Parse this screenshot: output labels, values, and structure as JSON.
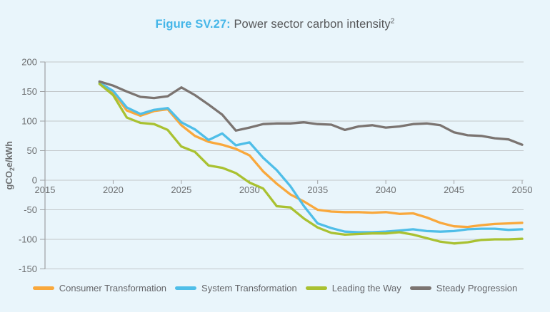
{
  "title": {
    "prefix": "Figure SV.27:",
    "text": " Power sector carbon intensity",
    "superscript": "2"
  },
  "colors": {
    "background": "#E9F5FB",
    "title_accent": "#45B6E8",
    "title_text": "#57585A",
    "axis_text": "#6E7072",
    "legend_text": "#65666A",
    "gridline": "#C2C7CA",
    "axis_line": "#9FA1A4"
  },
  "chart_data": {
    "type": "line",
    "title": "Power sector carbon intensity",
    "xlabel": "",
    "ylabel": "gCO2e/kWh",
    "ylabel_parts": [
      "gCO",
      "2",
      "e/kWh"
    ],
    "xlim": [
      2015,
      2050
    ],
    "ylim": [
      -150,
      200
    ],
    "x_ticks": [
      2015,
      2020,
      2025,
      2030,
      2035,
      2040,
      2045,
      2050
    ],
    "y_ticks": [
      200,
      150,
      100,
      50,
      0,
      -50,
      -100,
      -150
    ],
    "grid": "horizontal",
    "legend_position": "bottom",
    "x": [
      2019,
      2020,
      2021,
      2022,
      2023,
      2024,
      2025,
      2026,
      2027,
      2028,
      2029,
      2030,
      2031,
      2032,
      2033,
      2034,
      2035,
      2036,
      2037,
      2038,
      2039,
      2040,
      2041,
      2042,
      2043,
      2044,
      2045,
      2046,
      2047,
      2048,
      2049,
      2050
    ],
    "series": [
      {
        "name": "Consumer Transformation",
        "color": "#F9A83C",
        "values": [
          166,
          149,
          118,
          109,
          117,
          120,
          93,
          75,
          65,
          60,
          53,
          42,
          15,
          -6,
          -24,
          -36,
          -50,
          -53,
          -54,
          -54,
          -55,
          -54,
          -57,
          -56,
          -63,
          -72,
          -78,
          -79,
          -76,
          -74,
          -73,
          -72
        ]
      },
      {
        "name": "System Transformation",
        "color": "#4FBEE8",
        "values": [
          165,
          151,
          123,
          112,
          119,
          122,
          98,
          86,
          68,
          79,
          59,
          64,
          38,
          17,
          -10,
          -44,
          -73,
          -81,
          -87,
          -88,
          -88,
          -87,
          -85,
          -83,
          -86,
          -87,
          -86,
          -83,
          -82,
          -82,
          -84,
          -83
        ]
      },
      {
        "name": "Leading the Way",
        "color": "#A9C131",
        "values": [
          163,
          144,
          106,
          97,
          95,
          85,
          57,
          48,
          25,
          21,
          12,
          -4,
          -14,
          -44,
          -46,
          -65,
          -80,
          -89,
          -92,
          -91,
          -90,
          -90,
          -88,
          -92,
          -98,
          -104,
          -107,
          -105,
          -101,
          -100,
          -100,
          -99
        ]
      },
      {
        "name": "Steady Progression",
        "color": "#7B7471",
        "values": [
          167,
          160,
          150,
          141,
          139,
          142,
          157,
          144,
          128,
          111,
          84,
          89,
          95,
          96,
          96,
          98,
          95,
          94,
          85,
          91,
          93,
          89,
          91,
          95,
          96,
          93,
          81,
          76,
          75,
          71,
          69,
          60
        ]
      }
    ]
  }
}
